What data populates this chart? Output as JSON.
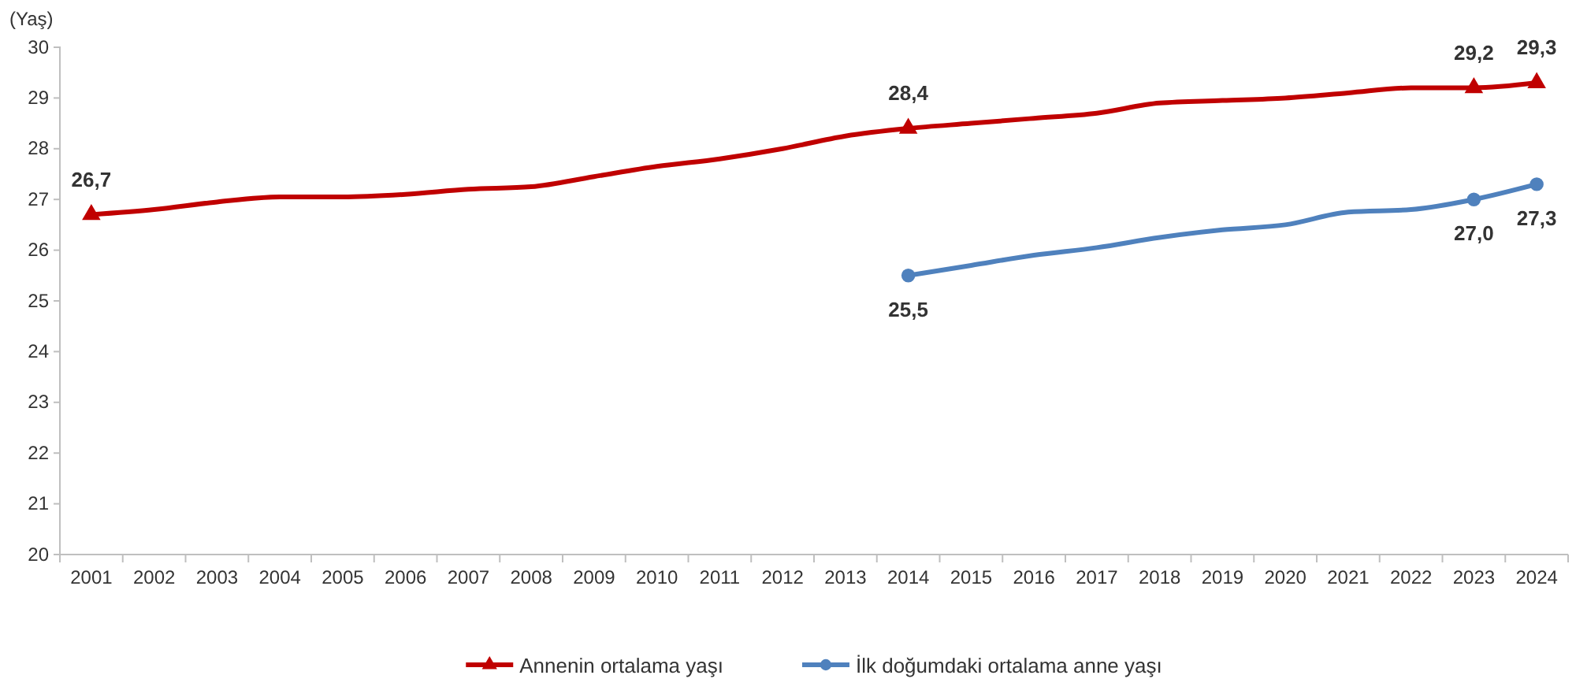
{
  "chart_data": {
    "type": "line",
    "ylabel": "(Yaş)",
    "categories": [
      "2001",
      "2002",
      "2003",
      "2004",
      "2005",
      "2006",
      "2007",
      "2008",
      "2009",
      "2010",
      "2011",
      "2012",
      "2013",
      "2014",
      "2015",
      "2016",
      "2017",
      "2018",
      "2019",
      "2020",
      "2021",
      "2022",
      "2023",
      "2024"
    ],
    "series": [
      {
        "name": "Annenin ortalama yaşı",
        "color": "#c00000",
        "values": [
          26.7,
          26.8,
          26.95,
          27.05,
          27.05,
          27.1,
          27.2,
          27.25,
          27.45,
          27.65,
          27.8,
          28.0,
          28.25,
          28.4,
          28.5,
          28.6,
          28.7,
          28.9,
          28.95,
          29.0,
          29.1,
          29.2,
          29.2,
          29.3
        ],
        "value_labels": [
          "26,7",
          null,
          null,
          null,
          null,
          null,
          null,
          null,
          null,
          null,
          null,
          null,
          null,
          "28,4",
          null,
          null,
          null,
          null,
          null,
          null,
          null,
          null,
          "29,2",
          "29,3"
        ]
      },
      {
        "name": "İlk doğumdaki ortalama anne yaşı",
        "color": "#4f81bd",
        "values": [
          null,
          null,
          null,
          null,
          null,
          null,
          null,
          null,
          null,
          null,
          null,
          null,
          null,
          25.5,
          25.7,
          25.9,
          26.05,
          26.25,
          26.4,
          26.5,
          26.75,
          26.8,
          27.0,
          27.3
        ],
        "value_labels": [
          null,
          null,
          null,
          null,
          null,
          null,
          null,
          null,
          null,
          null,
          null,
          null,
          null,
          "25,5",
          null,
          null,
          null,
          null,
          null,
          null,
          null,
          null,
          "27,0",
          "27,3"
        ]
      }
    ],
    "ylim": [
      20,
      30
    ],
    "yticks": [
      20,
      21,
      22,
      23,
      24,
      25,
      26,
      27,
      28,
      29,
      30
    ],
    "legend": "bottom",
    "grid": false
  }
}
